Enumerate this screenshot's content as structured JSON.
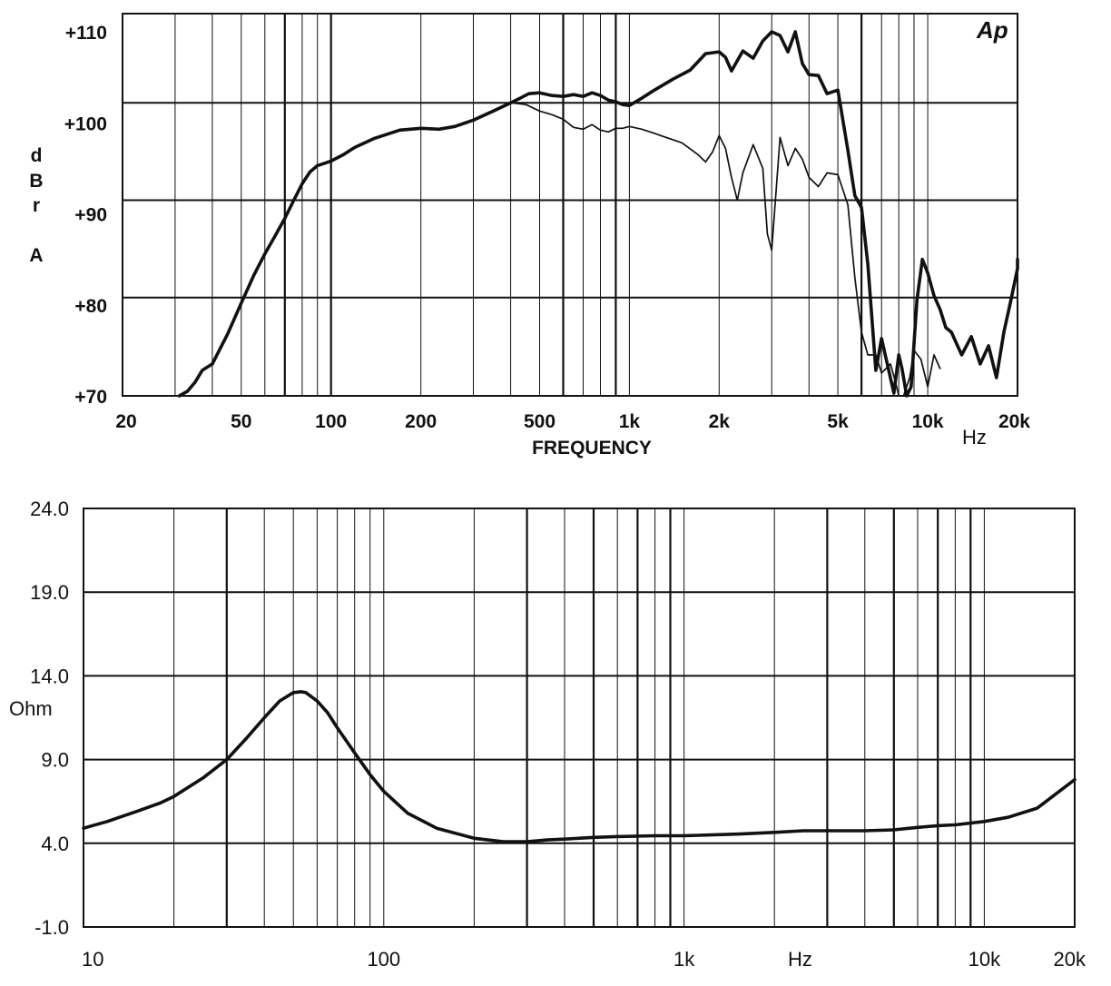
{
  "chart_data": [
    {
      "type": "line",
      "logo": "Ap",
      "xlabel": "FREQUENCY",
      "x_unit": "Hz",
      "ylabel_chars": [
        "d",
        "B",
        "r",
        "A"
      ],
      "x_scale": "log",
      "xlim": [
        20,
        20000
      ],
      "ylim": [
        70,
        112
      ],
      "x_tick_values": [
        20,
        50,
        100,
        200,
        500,
        1000,
        2000,
        5000,
        10000,
        20000
      ],
      "x_tick_labels": [
        "20",
        "50",
        "100",
        "200",
        "500",
        "1k",
        "2k",
        "5k",
        "10k",
        "20k"
      ],
      "y_tick_values": [
        70,
        80,
        90,
        100,
        110
      ],
      "y_tick_labels": [
        "+70",
        "+80",
        "+90",
        "+100",
        "+110"
      ],
      "y_major_gridlines": [
        80.8,
        91.5,
        102.2
      ],
      "grid": true,
      "series": [
        {
          "style": "thick",
          "x": [
            31,
            33,
            35,
            37,
            40,
            45,
            50,
            55,
            60,
            65,
            70,
            75,
            80,
            85,
            90,
            100,
            110,
            120,
            140,
            170,
            200,
            230,
            260,
            300,
            350,
            400,
            430,
            460,
            500,
            550,
            600,
            650,
            700,
            750,
            800,
            850,
            900,
            950,
            1000,
            1100,
            1200,
            1400,
            1600,
            1800,
            2000,
            2100,
            2200,
            2400,
            2600,
            2800,
            3000,
            3200,
            3400,
            3600,
            3800,
            4000,
            4300,
            4600,
            5000,
            5400,
            5700,
            6000,
            6300,
            6700,
            7000,
            7300,
            7700,
            8000,
            8200,
            8500,
            8800,
            9200,
            9600,
            10000,
            10500,
            11000,
            11500,
            12000,
            13000,
            14000,
            15000,
            16000,
            17000,
            18000,
            19000,
            20000,
            21000
          ],
          "y": [
            70,
            70.5,
            71.5,
            72.8,
            73.5,
            76.8,
            80.2,
            83.2,
            85.6,
            87.6,
            89.5,
            91.5,
            93.3,
            94.6,
            95.3,
            95.8,
            96.5,
            97.3,
            98.3,
            99.2,
            99.4,
            99.3,
            99.6,
            100.3,
            101.3,
            102.2,
            102.7,
            103.2,
            103.3,
            103.0,
            102.9,
            103.1,
            102.9,
            103.3,
            103.0,
            102.5,
            102.3,
            102.0,
            101.9,
            102.7,
            103.5,
            104.8,
            105.8,
            107.6,
            107.8,
            107.2,
            105.7,
            107.9,
            107.1,
            109.0,
            110.0,
            109.6,
            107.8,
            110.0,
            106.5,
            105.3,
            105.2,
            103.2,
            103.6,
            97.0,
            92.0,
            90.7,
            84.5,
            72.8,
            76.3,
            73.7,
            70.3,
            74.5,
            73.0,
            70.0,
            71.0,
            80.5,
            85.0,
            83.5,
            81.0,
            79.5,
            77.5,
            77.0,
            74.5,
            76.5,
            73.5,
            75.5,
            72.0,
            77.0,
            80.5,
            84.0,
            85.0
          ]
        },
        {
          "style": "thin",
          "x": [
            400,
            450,
            500,
            550,
            600,
            650,
            700,
            750,
            800,
            850,
            900,
            950,
            1000,
            1100,
            1200,
            1300,
            1500,
            1700,
            1800,
            1900,
            2000,
            2100,
            2200,
            2300,
            2400,
            2600,
            2800,
            2900,
            3000,
            3200,
            3400,
            3600,
            3800,
            4000,
            4300,
            4600,
            5000,
            5400,
            5700,
            6000,
            6300,
            6700,
            7000,
            7500,
            7800,
            8000,
            8300,
            8700,
            9000,
            9500,
            10000,
            10500,
            11000
          ],
          "y": [
            102.2,
            102.0,
            101.3,
            100.9,
            100.4,
            99.5,
            99.3,
            99.8,
            99.2,
            99.0,
            99.4,
            99.4,
            99.6,
            99.3,
            98.9,
            98.5,
            97.8,
            96.5,
            95.7,
            96.8,
            98.6,
            97.2,
            94.0,
            91.5,
            94.5,
            97.6,
            95.0,
            87.8,
            86.0,
            98.4,
            95.3,
            97.2,
            96.0,
            94.0,
            93.0,
            94.5,
            94.3,
            91.0,
            83.0,
            77.0,
            74.5,
            74.5,
            72.5,
            73.5,
            71.5,
            70.0,
            70.0,
            72.0,
            75.0,
            74.0,
            71.0,
            74.5,
            73.0
          ]
        }
      ]
    },
    {
      "type": "line",
      "ylabel": "Ohm",
      "x_unit": "Hz",
      "x_scale": "log",
      "xlim": [
        10,
        20000
      ],
      "ylim": [
        -1.0,
        24.0
      ],
      "x_tick_values": [
        10,
        100,
        1000,
        10000,
        20000
      ],
      "x_tick_labels": [
        "10",
        "100",
        "1k",
        "10k",
        "20k"
      ],
      "y_tick_values": [
        -1.0,
        4.0,
        9.0,
        14.0,
        19.0,
        24.0
      ],
      "y_tick_labels": [
        "-1.0",
        "4.0",
        "9.0",
        "14.0",
        "19.0",
        "24.0"
      ],
      "grid": true,
      "series": [
        {
          "style": "thick",
          "x": [
            10,
            12,
            15,
            18,
            20,
            25,
            30,
            35,
            40,
            45,
            50,
            53,
            55,
            60,
            65,
            70,
            80,
            90,
            100,
            120,
            150,
            200,
            250,
            300,
            350,
            400,
            500,
            600,
            800,
            1000,
            1500,
            2000,
            2500,
            3000,
            4000,
            5000,
            6000,
            7000,
            8000,
            10000,
            12000,
            15000,
            20000
          ],
          "y": [
            4.9,
            5.3,
            5.9,
            6.4,
            6.8,
            7.9,
            9.0,
            10.3,
            11.5,
            12.5,
            13.0,
            13.05,
            13.0,
            12.5,
            11.8,
            10.9,
            9.4,
            8.1,
            7.1,
            5.8,
            4.9,
            4.3,
            4.1,
            4.1,
            4.2,
            4.25,
            4.35,
            4.4,
            4.45,
            4.45,
            4.55,
            4.65,
            4.75,
            4.75,
            4.75,
            4.8,
            4.95,
            5.05,
            5.1,
            5.3,
            5.55,
            6.1,
            7.8
          ]
        }
      ]
    }
  ]
}
